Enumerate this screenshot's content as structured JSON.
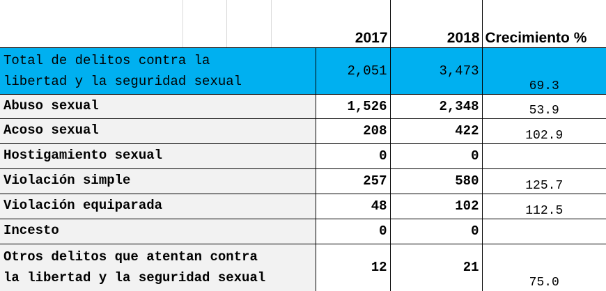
{
  "table": {
    "headers": {
      "year1": "2017",
      "year2": "2018",
      "growth": "Crecimiento %"
    },
    "total": {
      "label_line1": "Total de delitos contra la",
      "label_line2": "libertad y la seguridad sexual",
      "v2017": "2,051",
      "v2018": "3,473",
      "growth": "69.3"
    },
    "rows": [
      {
        "label": "Abuso sexual",
        "v2017": "1,526",
        "v2018": "2,348",
        "growth": "53.9"
      },
      {
        "label": "Acoso sexual",
        "v2017": "208",
        "v2018": "422",
        "growth": "102.9"
      },
      {
        "label": "Hostigamiento sexual",
        "v2017": "0",
        "v2018": "0",
        "growth": ""
      },
      {
        "label": "Violación simple",
        "v2017": "257",
        "v2018": "580",
        "growth": "125.7"
      },
      {
        "label": "Violación equiparada",
        "v2017": "48",
        "v2018": "102",
        "growth": "112.5"
      },
      {
        "label": "Incesto",
        "v2017": "0",
        "v2018": "0",
        "growth": ""
      }
    ],
    "other": {
      "label_line1": "Otros delitos que atentan contra",
      "label_line2": "la libertad y la seguridad sexual",
      "v2017": "12",
      "v2018": "21",
      "growth": "75.0"
    }
  },
  "colors": {
    "total_fill": "#00b0f0",
    "row_fill": "#f2f2f2"
  }
}
